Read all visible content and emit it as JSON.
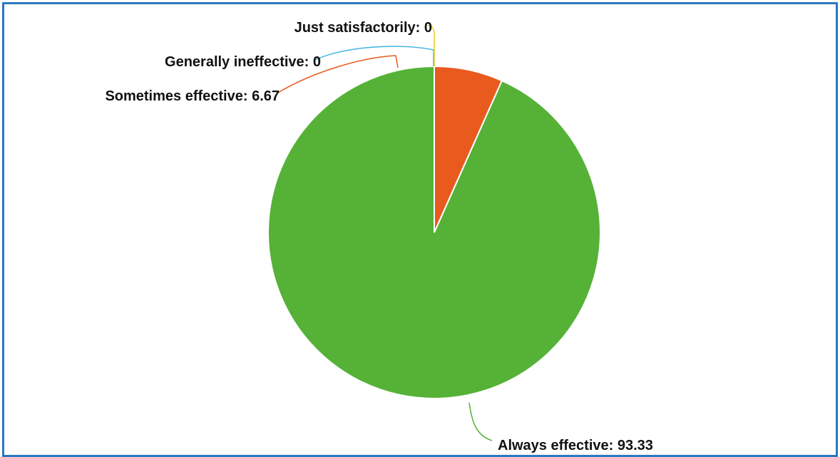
{
  "chart_data": {
    "type": "pie",
    "title": "",
    "start_angle_deg": 0,
    "direction": "counterclockwise",
    "slices": [
      {
        "label": "Always effective",
        "value": 93.33,
        "display": "Always effective: 93.33",
        "color": "#55b237"
      },
      {
        "label": "Sometimes effective",
        "value": 6.67,
        "display": "Sometimes effective: 6.67",
        "color": "#e85a1e"
      },
      {
        "label": "Generally ineffective",
        "value": 0,
        "display": "Generally ineffective: 0",
        "color": "#3fb3e0"
      },
      {
        "label": "Just satisfactorily",
        "value": 0,
        "display": "Just satisfactorily: 0",
        "color": "#e8d21a"
      }
    ]
  },
  "frame": {
    "border_color": "#2b79bf"
  }
}
